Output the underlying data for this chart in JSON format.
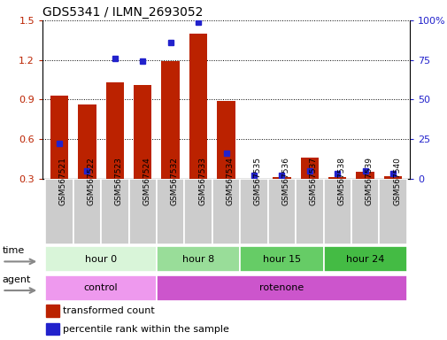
{
  "title": "GDS5341 / ILMN_2693052",
  "samples": [
    "GSM567521",
    "GSM567522",
    "GSM567523",
    "GSM567524",
    "GSM567532",
    "GSM567533",
    "GSM567534",
    "GSM567535",
    "GSM567536",
    "GSM567537",
    "GSM567538",
    "GSM567539",
    "GSM567540"
  ],
  "transformed_count": [
    0.93,
    0.86,
    1.03,
    1.01,
    1.19,
    1.4,
    0.89,
    0.3,
    0.31,
    0.46,
    0.31,
    0.35,
    0.32
  ],
  "percentile_rank": [
    22,
    5,
    76,
    74,
    86,
    99,
    16,
    2,
    2,
    5,
    3,
    5,
    3
  ],
  "red_color": "#bb2200",
  "blue_color": "#2222cc",
  "ylim_left": [
    0.3,
    1.5
  ],
  "ylim_right": [
    0,
    100
  ],
  "yticks_left": [
    0.3,
    0.6,
    0.9,
    1.2,
    1.5
  ],
  "yticks_right": [
    0,
    25,
    50,
    75,
    100
  ],
  "time_groups": [
    {
      "label": "hour 0",
      "start": 0,
      "end": 3,
      "color": "#d9f5d9"
    },
    {
      "label": "hour 8",
      "start": 4,
      "end": 6,
      "color": "#99dd99"
    },
    {
      "label": "hour 15",
      "start": 7,
      "end": 9,
      "color": "#66cc66"
    },
    {
      "label": "hour 24",
      "start": 10,
      "end": 12,
      "color": "#44bb44"
    }
  ],
  "agent_groups": [
    {
      "label": "control",
      "start": 0,
      "end": 3,
      "color": "#ee99ee"
    },
    {
      "label": "rotenone",
      "start": 4,
      "end": 12,
      "color": "#cc55cc"
    }
  ],
  "tick_area_color": "#cccccc",
  "legend_red_label": "transformed count",
  "legend_blue_label": "percentile rank within the sample"
}
